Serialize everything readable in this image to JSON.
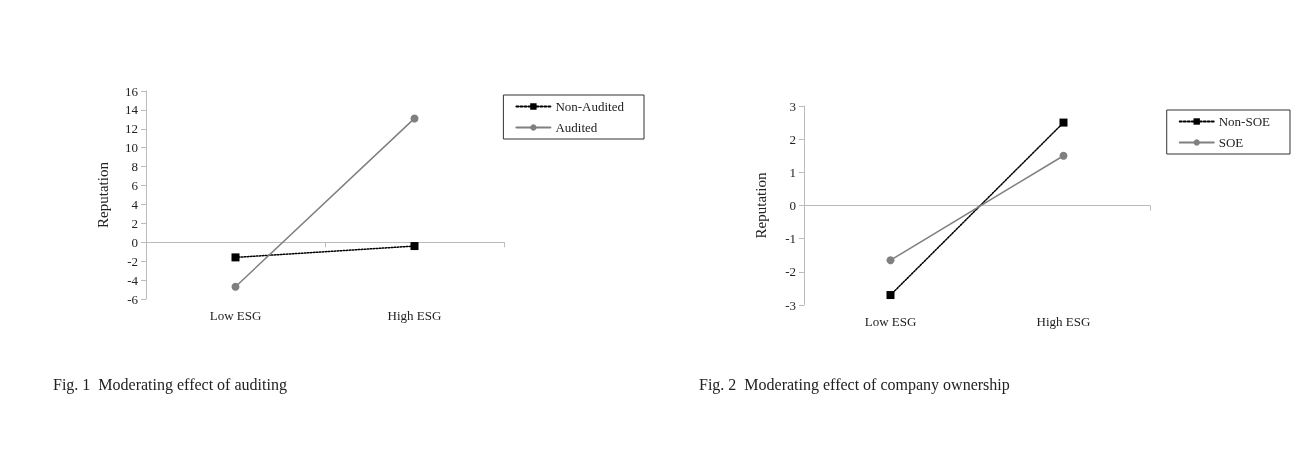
{
  "chart_data": [
    {
      "type": "line",
      "title": "Fig. 1  Moderating effect of auditing",
      "ylabel": "Reputation",
      "categories": [
        "Low ESG",
        "High ESG"
      ],
      "series": [
        {
          "name": "Non-Audited",
          "color": "#000000",
          "values": [
            -1.6,
            -0.4
          ],
          "marker": "square",
          "line_style": "dotted"
        },
        {
          "name": "Audited",
          "color": "#808080",
          "values": [
            -4.7,
            13.1
          ],
          "marker": "circle",
          "line_style": "solid"
        }
      ],
      "ylim": [
        -6,
        16
      ],
      "yticks": [
        -6,
        -4,
        -2,
        0,
        2,
        4,
        6,
        8,
        10,
        12,
        14,
        16
      ],
      "legend": "top right"
    },
    {
      "type": "line",
      "title": "Fig. 2  Moderating effect of company ownership",
      "ylabel": "Reputation",
      "categories": [
        "Low ESG",
        "High ESG"
      ],
      "series": [
        {
          "name": "Non-SOE",
          "color": "#000000",
          "values": [
            -2.7,
            2.5
          ],
          "marker": "square",
          "line_style": "dotted"
        },
        {
          "name": "SOE",
          "color": "#808080",
          "values": [
            -1.65,
            1.5
          ],
          "marker": "circle",
          "line_style": "solid"
        }
      ],
      "ylim": [
        -3,
        3
      ],
      "yticks": [
        -3,
        -2,
        -1,
        0,
        1,
        2,
        3
      ],
      "legend": "top right"
    }
  ]
}
